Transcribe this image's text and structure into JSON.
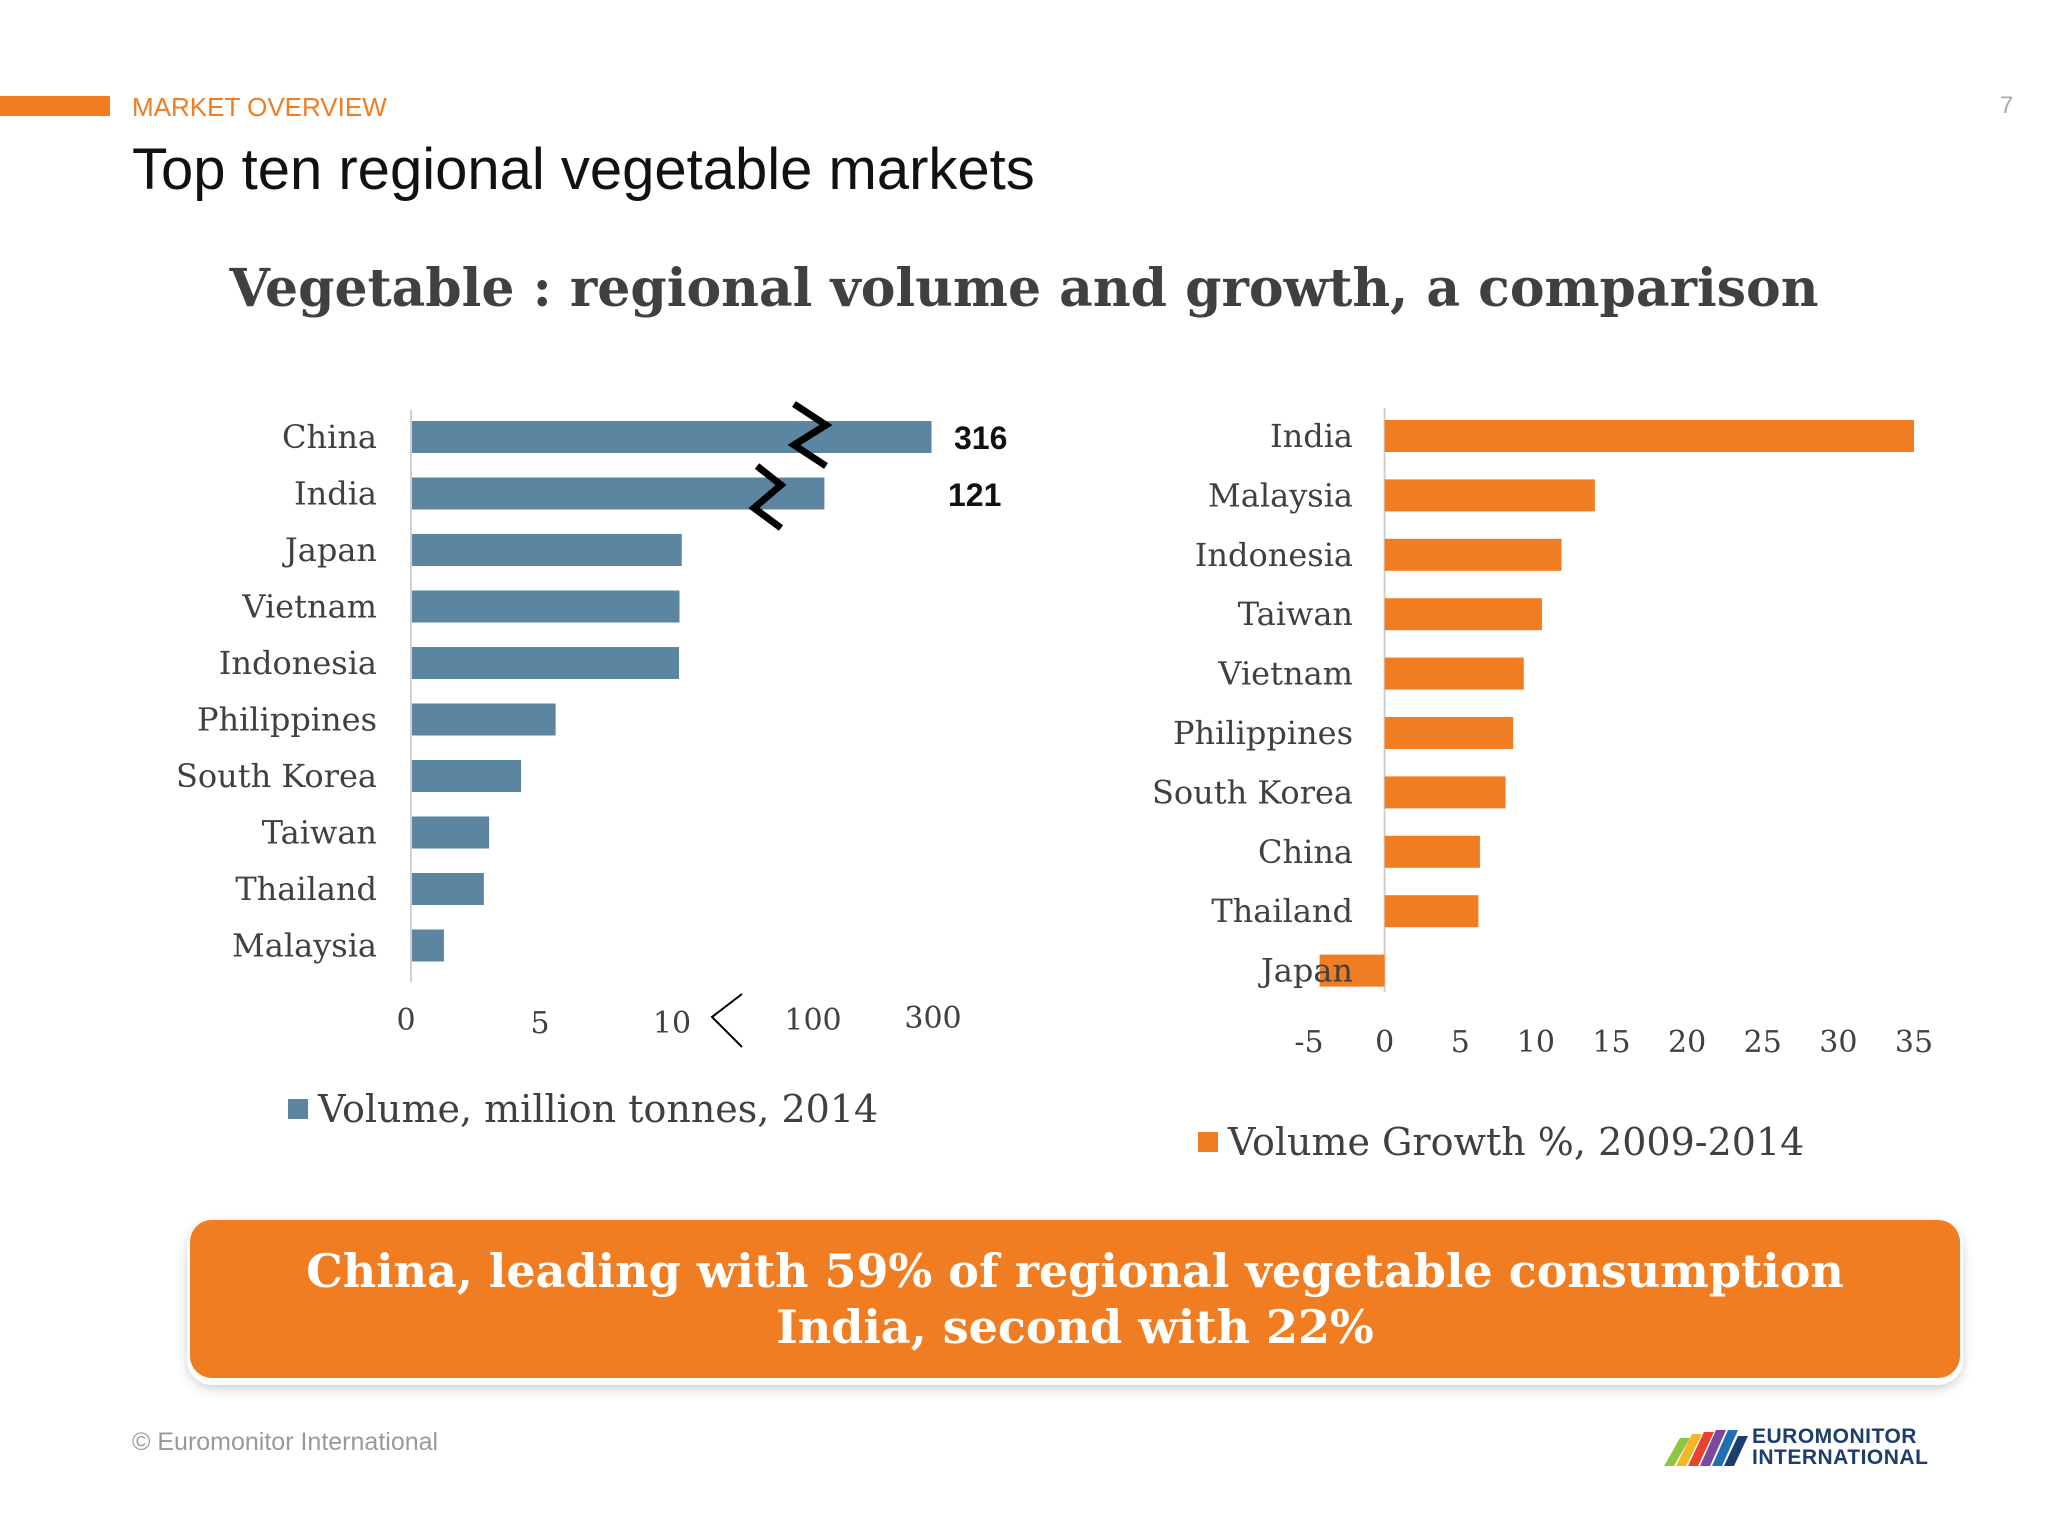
{
  "header": {
    "section_label": "MARKET OVERVIEW",
    "page_number": "7",
    "title": "Top ten regional vegetable markets",
    "accent_color": "#f07d22"
  },
  "chart_heading": "Vegetable : regional volume and growth, a comparison",
  "chart_data": [
    {
      "type": "bar",
      "orientation": "horizontal",
      "axis_note": "broken axis: linear 0–10, then 100 and 300",
      "categories": [
        "China",
        "India",
        "Japan",
        "Vietnam",
        "Indonesia",
        "Philippines",
        "South Korea",
        "Taiwan",
        "Thailand",
        "Malaysia"
      ],
      "series": [
        {
          "name": "Volume, million tonnes, 2014",
          "values": [
            316,
            121,
            12.5,
            11.0,
            10.7,
            5.4,
            4.1,
            2.9,
            2.7,
            1.2
          ],
          "color": "#5b85a0"
        }
      ],
      "data_labels": [
        "316",
        "121"
      ],
      "x_ticks": [
        "0",
        "5",
        "10",
        "100",
        "300"
      ],
      "grid": false,
      "legend": "bottom"
    },
    {
      "type": "bar",
      "orientation": "horizontal",
      "categories": [
        "India",
        "Malaysia",
        "Indonesia",
        "Taiwan",
        "Vietnam",
        "Philippines",
        "South Korea",
        "China",
        "Thailand",
        "Japan"
      ],
      "series": [
        {
          "name": "Volume Growth %, 2009-2014",
          "values": [
            35,
            13.9,
            11.7,
            10.4,
            9.2,
            8.5,
            8.0,
            6.3,
            6.2,
            -4.3
          ],
          "color": "#f07d22"
        }
      ],
      "x_ticks": [
        "-5",
        "0",
        "5",
        "10",
        "15",
        "20",
        "25",
        "30",
        "35"
      ],
      "xlim": [
        -5,
        35
      ],
      "grid": false,
      "legend": "bottom"
    }
  ],
  "callout": {
    "line1": "China, leading with 59% of regional vegetable consumption",
    "line2": "India, second with 22%"
  },
  "footer": {
    "copyright": "© Euromonitor International",
    "logo_line1": "EUROMONITOR",
    "logo_line2": "INTERNATIONAL"
  }
}
